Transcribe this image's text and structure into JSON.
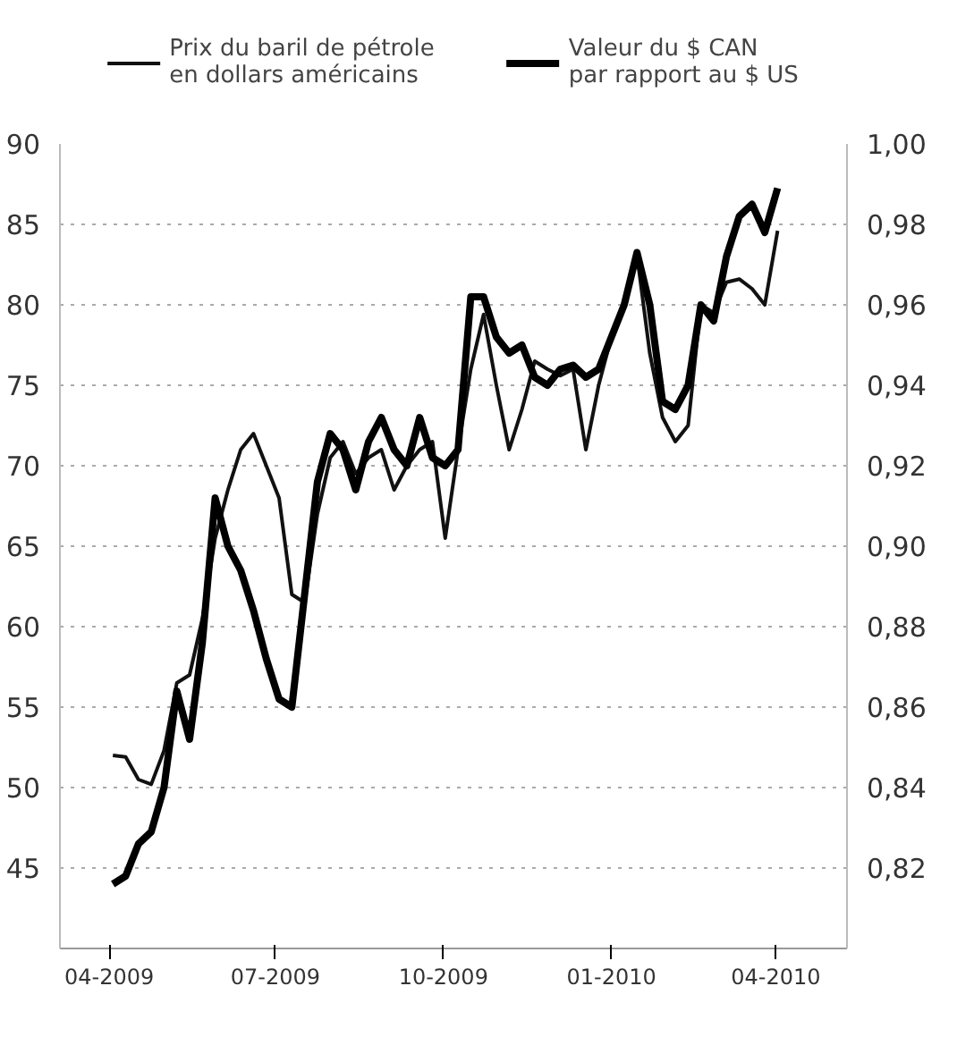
{
  "chart_data": {
    "type": "line",
    "x": [
      "2009-04-03",
      "2009-04-10",
      "2009-04-17",
      "2009-04-24",
      "2009-05-01",
      "2009-05-08",
      "2009-05-15",
      "2009-05-22",
      "2009-05-29",
      "2009-06-05",
      "2009-06-12",
      "2009-06-19",
      "2009-06-26",
      "2009-07-03",
      "2009-07-10",
      "2009-07-17",
      "2009-07-24",
      "2009-07-31",
      "2009-08-07",
      "2009-08-14",
      "2009-08-21",
      "2009-08-28",
      "2009-09-04",
      "2009-09-11",
      "2009-09-18",
      "2009-09-25",
      "2009-10-02",
      "2009-10-09",
      "2009-10-16",
      "2009-10-23",
      "2009-10-30",
      "2009-11-06",
      "2009-11-13",
      "2009-11-20",
      "2009-11-27",
      "2009-12-04",
      "2009-12-11",
      "2009-12-18",
      "2009-12-25",
      "2010-01-01",
      "2010-01-08",
      "2010-01-15",
      "2010-01-22",
      "2010-01-29",
      "2010-02-05",
      "2010-02-12",
      "2010-02-19",
      "2010-02-26",
      "2010-03-05",
      "2010-03-12",
      "2010-03-19",
      "2010-03-26",
      "2010-04-02"
    ],
    "series": [
      {
        "name": "Prix du baril de pétrole\nen dollars américains",
        "color": "#111111",
        "values": [
          52.0,
          51.9,
          50.5,
          50.2,
          52.3,
          56.5,
          57.0,
          60.5,
          65.5,
          68.5,
          71.0,
          72.0,
          70.0,
          68.0,
          62.0,
          61.5,
          67.0,
          70.5,
          71.5,
          69.5,
          70.5,
          71.0,
          68.5,
          70.0,
          71.0,
          71.5,
          65.5,
          71.0,
          76.0,
          79.4,
          75.0,
          71.0,
          73.5,
          76.5,
          76.0,
          75.6,
          76.0,
          71.0,
          75.0,
          78.0,
          80.0,
          83.1,
          77.0,
          73.0,
          71.5,
          72.5,
          80.0,
          79.5,
          81.4,
          81.6,
          81.0,
          80.0,
          84.6
        ]
      },
      {
        "name": "Valeur du $ CAN\npar rapport au $ US",
        "color": "#000000",
        "axis": "y2",
        "values": [
          0.816,
          0.818,
          0.826,
          0.829,
          0.84,
          0.864,
          0.852,
          0.876,
          0.912,
          0.9,
          0.894,
          0.884,
          0.872,
          0.862,
          0.86,
          0.888,
          0.916,
          0.928,
          0.924,
          0.914,
          0.926,
          0.932,
          0.924,
          0.92,
          0.932,
          0.922,
          0.92,
          0.924,
          0.962,
          0.962,
          0.952,
          0.948,
          0.95,
          0.942,
          0.94,
          0.944,
          0.945,
          0.942,
          0.944,
          0.952,
          0.96,
          0.973,
          0.96,
          0.936,
          0.934,
          0.94,
          0.96,
          0.956,
          0.972,
          0.982,
          0.985,
          0.978,
          0.989
        ]
      }
    ],
    "xlim": [
      "2009-03-05",
      "2010-05-10"
    ],
    "xticks": [
      {
        "value": "2009-04-01",
        "label": "04-2009"
      },
      {
        "value": "2009-07-01",
        "label": "07-2009"
      },
      {
        "value": "2009-10-01",
        "label": "10-2009"
      },
      {
        "value": "2010-01-01",
        "label": "01-2010"
      },
      {
        "value": "2010-04-01",
        "label": "04-2010"
      }
    ],
    "ylim": [
      40,
      90
    ],
    "yticks": [
      45,
      50,
      55,
      60,
      65,
      70,
      75,
      80,
      85,
      90
    ],
    "y2lim": [
      0.8,
      1.0
    ],
    "y2ticks": [
      {
        "value": 0.82,
        "label": "0,82"
      },
      {
        "value": 0.84,
        "label": "0,84"
      },
      {
        "value": 0.86,
        "label": "0,86"
      },
      {
        "value": 0.88,
        "label": "0,88"
      },
      {
        "value": 0.9,
        "label": "0,90"
      },
      {
        "value": 0.92,
        "label": "0,92"
      },
      {
        "value": 0.94,
        "label": "0,94"
      },
      {
        "value": 0.96,
        "label": "0,96"
      },
      {
        "value": 0.98,
        "label": "0,98"
      },
      {
        "value": 1.0,
        "label": "1,00"
      }
    ],
    "grid": "y",
    "legend": "top",
    "line_style": "solid",
    "marker": "none"
  }
}
